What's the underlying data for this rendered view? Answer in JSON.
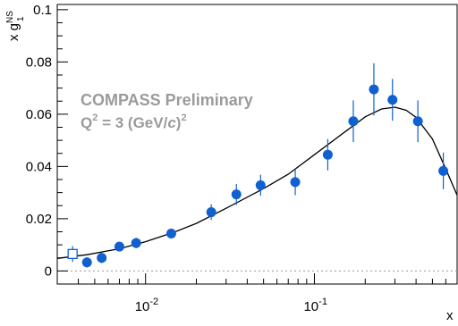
{
  "chart_data": {
    "type": "scatter",
    "x_scale": "log",
    "xlim": [
      0.003,
      0.7
    ],
    "ylim": [
      -0.005,
      0.102
    ],
    "xlabel": "x",
    "ylabel": {
      "main": "x g",
      "sup": "NS",
      "sub": "1"
    },
    "y_ticks": [
      {
        "value": 0.0,
        "label": "0"
      },
      {
        "value": 0.02,
        "label": "0.02"
      },
      {
        "value": 0.04,
        "label": "0.04"
      },
      {
        "value": 0.06,
        "label": "0.06"
      },
      {
        "value": 0.08,
        "label": "0.08"
      },
      {
        "value": 0.1,
        "label": "0.1"
      }
    ],
    "x_ticks": [
      {
        "value": 0.01,
        "base": "10",
        "exp": "-2"
      },
      {
        "value": 0.1,
        "base": "10",
        "exp": "-1"
      }
    ],
    "annotation": {
      "line1": "COMPASS Preliminary",
      "line2_prefix": "Q",
      "line2_sup": "2",
      "line2_mid": " = 3 (GeV/",
      "line2_ital": "c",
      "line2_end": ")",
      "line2_sup2": "2"
    },
    "series": [
      {
        "marker": "filled-circle",
        "color": "#1060d0",
        "points": [
          {
            "x": 0.0045,
            "y": 0.0033,
            "err": 0.002
          },
          {
            "x": 0.0055,
            "y": 0.005,
            "err": 0.002
          },
          {
            "x": 0.007,
            "y": 0.0093,
            "err": 0.0015
          },
          {
            "x": 0.0088,
            "y": 0.0107,
            "err": 0.002
          },
          {
            "x": 0.0142,
            "y": 0.0143,
            "err": 0.0012
          },
          {
            "x": 0.0245,
            "y": 0.0225,
            "err": 0.003
          },
          {
            "x": 0.0345,
            "y": 0.0293,
            "err": 0.004
          },
          {
            "x": 0.048,
            "y": 0.0328,
            "err": 0.004
          },
          {
            "x": 0.077,
            "y": 0.034,
            "err": 0.005
          },
          {
            "x": 0.12,
            "y": 0.0445,
            "err": 0.006
          },
          {
            "x": 0.17,
            "y": 0.0573,
            "err": 0.008
          },
          {
            "x": 0.225,
            "y": 0.0695,
            "err": 0.01
          },
          {
            "x": 0.29,
            "y": 0.0655,
            "err": 0.008
          },
          {
            "x": 0.41,
            "y": 0.0573,
            "err": 0.008
          },
          {
            "x": 0.58,
            "y": 0.0383,
            "err": 0.007
          }
        ]
      },
      {
        "marker": "open-square",
        "color": "#1060d0",
        "points": [
          {
            "x": 0.0037,
            "y": 0.0065,
            "err": 0.003
          }
        ]
      }
    ],
    "fit_curve": {
      "color": "#000000",
      "points": [
        [
          0.003,
          0.0048
        ],
        [
          0.0045,
          0.0062
        ],
        [
          0.007,
          0.0085
        ],
        [
          0.01,
          0.0112
        ],
        [
          0.015,
          0.015
        ],
        [
          0.02,
          0.0182
        ],
        [
          0.03,
          0.024
        ],
        [
          0.05,
          0.0315
        ],
        [
          0.07,
          0.037
        ],
        [
          0.1,
          0.0445
        ],
        [
          0.15,
          0.053
        ],
        [
          0.2,
          0.059
        ],
        [
          0.25,
          0.062
        ],
        [
          0.3,
          0.0627
        ],
        [
          0.35,
          0.0615
        ],
        [
          0.4,
          0.0588
        ],
        [
          0.5,
          0.0505
        ],
        [
          0.6,
          0.039
        ],
        [
          0.7,
          0.029
        ]
      ]
    },
    "zero_line": {
      "style": "dotted",
      "color": "#9b9b9b"
    }
  }
}
